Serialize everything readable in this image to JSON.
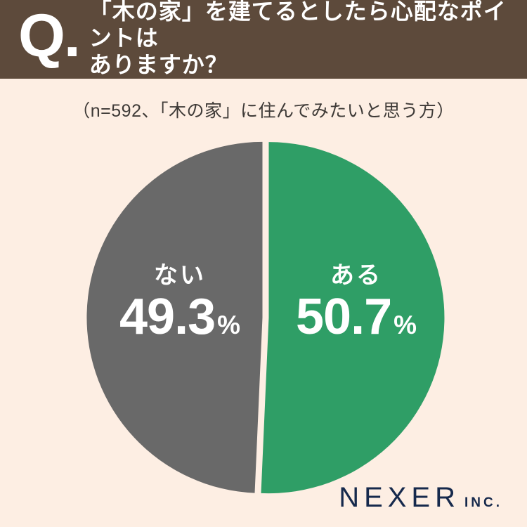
{
  "header": {
    "q_mark": "Q.",
    "question_line1": "「木の家」を建てるとしたら心配なポイントは",
    "question_line2": "ありますか？"
  },
  "subtitle": "（n=592、「木の家」に住んでみたいと思う方）",
  "chart_data": {
    "type": "pie",
    "title": "「木の家」を建てるとしたら心配なポイントはありますか？",
    "sample_note": "n=592、「木の家」に住んでみたいと思う方",
    "start_angle_deg": 0,
    "direction": "clockwise",
    "legend": "none",
    "labels_inside": true,
    "exploded_gap": true,
    "slices": [
      {
        "key": "aru",
        "label": "ある",
        "value": 50.7,
        "value_str": "50.7",
        "unit": "%",
        "color": "#2f9e66"
      },
      {
        "key": "nai",
        "label": "ない",
        "value": 49.3,
        "value_str": "49.3",
        "unit": "%",
        "color": "#696969"
      }
    ]
  },
  "brand": {
    "name": "NEXER",
    "suffix": "INC."
  },
  "colors": {
    "background": "#fdeee3",
    "header_bg": "#5d4a3b",
    "header_text": "#ffffff",
    "subtitle_text": "#3e3a37",
    "label_text": "#ffffff",
    "brand_navy": "#16294c"
  }
}
